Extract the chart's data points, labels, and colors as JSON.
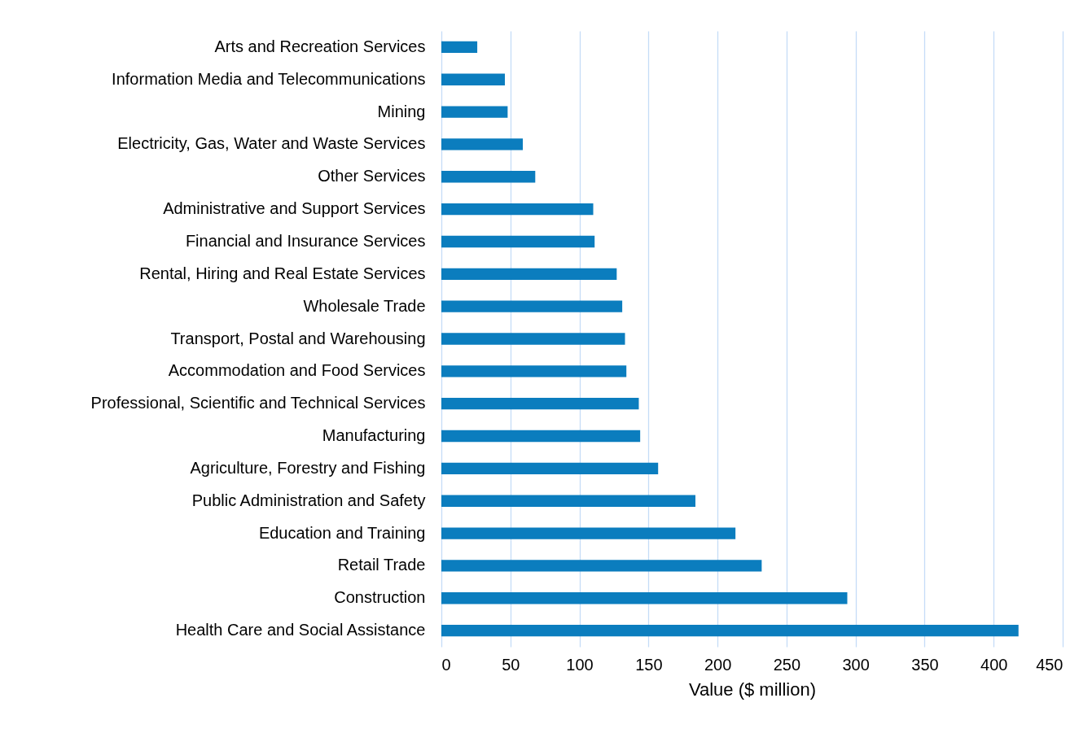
{
  "chart_data": {
    "type": "bar",
    "orientation": "horizontal",
    "xlabel": "Value ($ million)",
    "categories": [
      "Arts and Recreation Services",
      "Information Media and Telecommunications",
      "Mining",
      "Electricity, Gas, Water and Waste Services",
      "Other Services",
      "Administrative and Support Services",
      "Financial and Insurance Services",
      "Rental, Hiring and Real Estate Services",
      "Wholesale Trade",
      "Transport, Postal and Warehousing",
      "Accommodation and Food Services",
      "Professional, Scientific and Technical Services",
      "Manufacturing",
      "Agriculture, Forestry and Fishing",
      "Public Administration and Safety",
      "Education and Training",
      "Retail Trade",
      "Construction",
      "Health Care and Social Assistance"
    ],
    "values": [
      26,
      46,
      48,
      59,
      68,
      110,
      111,
      127,
      131,
      133,
      134,
      143,
      144,
      157,
      184,
      213,
      232,
      294,
      418
    ],
    "color": "#0b7dbe",
    "xlim": [
      0,
      450
    ],
    "xticks": [
      0,
      50,
      100,
      150,
      200,
      250,
      300,
      350,
      400,
      450
    ],
    "grid": "x"
  }
}
